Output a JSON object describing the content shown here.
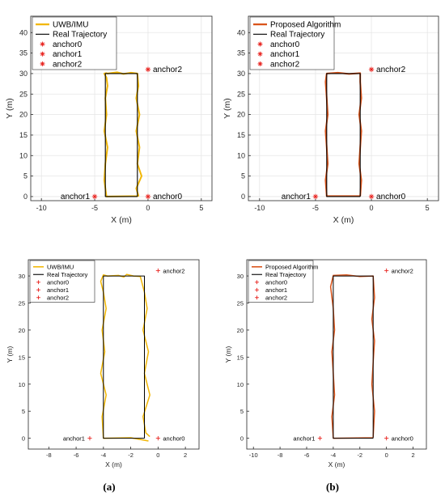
{
  "figure": {
    "panel_labels": [
      "(a)",
      "(b)"
    ]
  },
  "colors": {
    "uwb_imu": "#f2b705",
    "proposed": "#d95319",
    "real": "#000000",
    "anchor": "#e8231f",
    "grid": "#e6e6e6"
  },
  "chart_data": [
    {
      "id": "top-left",
      "type": "line",
      "xlabel": "X (m)",
      "ylabel": "Y (m)",
      "xlim": [
        -11,
        6
      ],
      "ylim": [
        -1,
        44
      ],
      "xticks": [
        -10,
        -5,
        0,
        5
      ],
      "yticks": [
        0,
        5,
        10,
        15,
        20,
        25,
        30,
        35,
        40
      ],
      "grid": true,
      "legend_location": "top-left",
      "style": "large",
      "series": [
        {
          "name": "UWB/IMU",
          "kind": "estimate",
          "color": "#f2b705",
          "x": [
            -1.0,
            -3.9,
            -4.1,
            -4.0,
            -3.8,
            -4.1,
            -3.9,
            -4.0,
            -3.8,
            -3.9,
            -4.1,
            -3.9,
            -3.8,
            -2.9,
            -2.3,
            -1.6,
            -1.0,
            -0.9,
            -1.1,
            -0.8,
            -1.1,
            -0.8,
            -1.0,
            -0.6,
            -1.1,
            -0.9,
            -1.0
          ],
          "y": [
            0.1,
            0.0,
            4.0,
            8.0,
            12.0,
            16.0,
            20.0,
            24.0,
            27.0,
            29.0,
            30.0,
            30.1,
            30.0,
            30.3,
            29.9,
            30.2,
            30.0,
            27.0,
            24.0,
            20.0,
            16.0,
            12.0,
            8.0,
            5.0,
            2.0,
            0.2,
            0.1
          ]
        },
        {
          "name": "Real Trajectory",
          "kind": "real",
          "color": "#000000",
          "x": [
            -1.0,
            -4.0,
            -4.0,
            -1.0,
            -1.0
          ],
          "y": [
            0,
            0,
            30,
            30,
            0
          ]
        },
        {
          "name": "anchor0",
          "kind": "anchor",
          "color": "#e8231f",
          "x": [
            0
          ],
          "y": [
            0
          ]
        },
        {
          "name": "anchor1",
          "kind": "anchor",
          "color": "#e8231f",
          "x": [
            -5
          ],
          "y": [
            0
          ]
        },
        {
          "name": "anchor2",
          "kind": "anchor",
          "color": "#e8231f",
          "x": [
            0
          ],
          "y": [
            31
          ]
        }
      ],
      "annotations": [
        {
          "text": "anchor2",
          "x": 0,
          "y": 31,
          "side": "right"
        },
        {
          "text": "anchor1",
          "x": -5,
          "y": 0,
          "side": "left"
        },
        {
          "text": "anchor0",
          "x": 0,
          "y": 0,
          "side": "right"
        }
      ]
    },
    {
      "id": "top-right",
      "type": "line",
      "xlabel": "X (m)",
      "ylabel": "Y (m)",
      "xlim": [
        -11,
        6
      ],
      "ylim": [
        -1,
        44
      ],
      "xticks": [
        -10,
        -5,
        0,
        5
      ],
      "yticks": [
        0,
        5,
        10,
        15,
        20,
        25,
        30,
        35,
        40
      ],
      "grid": true,
      "legend_location": "top-left",
      "style": "large",
      "series": [
        {
          "name": "Proposed Algorithm",
          "kind": "estimate",
          "color": "#d95319",
          "x": [
            -1.0,
            -4.0,
            -4.1,
            -3.9,
            -4.0,
            -4.1,
            -3.9,
            -4.0,
            -4.1,
            -4.0,
            -3.0,
            -2.0,
            -1.0,
            -1.0,
            -0.9,
            -1.1,
            -0.9,
            -1.0,
            -1.1,
            -0.9,
            -1.0
          ],
          "y": [
            0.1,
            0.1,
            4.0,
            8.0,
            12.0,
            16.0,
            20.0,
            24.0,
            28.0,
            30.0,
            30.2,
            29.9,
            30.1,
            28.0,
            24.0,
            20.0,
            16.0,
            12.0,
            8.0,
            4.0,
            0.1
          ]
        },
        {
          "name": "Real Trajectory",
          "kind": "real",
          "color": "#000000",
          "x": [
            -1.0,
            -4.0,
            -4.0,
            -1.0,
            -1.0
          ],
          "y": [
            0,
            0,
            30,
            30,
            0
          ]
        },
        {
          "name": "anchor0",
          "kind": "anchor",
          "color": "#e8231f",
          "x": [
            0
          ],
          "y": [
            0
          ]
        },
        {
          "name": "anchor1",
          "kind": "anchor",
          "color": "#e8231f",
          "x": [
            -5
          ],
          "y": [
            0
          ]
        },
        {
          "name": "anchor2",
          "kind": "anchor",
          "color": "#e8231f",
          "x": [
            0
          ],
          "y": [
            31
          ]
        }
      ],
      "annotations": [
        {
          "text": "anchor2",
          "x": 0,
          "y": 31,
          "side": "right"
        },
        {
          "text": "anchor1",
          "x": -5,
          "y": 0,
          "side": "left"
        },
        {
          "text": "anchor0",
          "x": 0,
          "y": 0,
          "side": "right"
        }
      ]
    },
    {
      "id": "bottom-left",
      "type": "line",
      "xlabel": "X (m)",
      "ylabel": "Y (m)",
      "xlim": [
        -9.5,
        3
      ],
      "ylim": [
        -2,
        33
      ],
      "xticks": [
        -8,
        -6,
        -4,
        -2,
        0,
        2
      ],
      "yticks": [
        0,
        5,
        10,
        15,
        20,
        25,
        30
      ],
      "grid": false,
      "legend_location": "top-left",
      "style": "small",
      "series": [
        {
          "name": "UWB/IMU",
          "kind": "estimate",
          "color": "#f2b705",
          "x": [
            -0.7,
            -2.0,
            -4.0,
            -4.1,
            -3.8,
            -4.2,
            -3.9,
            -4.1,
            -3.8,
            -4.0,
            -4.2,
            -4.0,
            -3.7,
            -2.9,
            -2.5,
            -2.3,
            -1.8,
            -1.3,
            -1.0,
            -0.8,
            -1.1,
            -0.7,
            -1.0,
            -0.6,
            -1.1,
            -0.9,
            -0.6
          ],
          "y": [
            -0.5,
            0.1,
            0.0,
            4.0,
            8.0,
            12.0,
            16.0,
            20.0,
            24.0,
            27.0,
            29.0,
            30.2,
            30.0,
            30.1,
            29.8,
            30.3,
            30.0,
            29.9,
            27.0,
            24.0,
            20.0,
            16.0,
            12.0,
            8.0,
            4.0,
            1.0,
            0.3
          ]
        },
        {
          "name": "Real Trajectory",
          "kind": "real",
          "color": "#000000",
          "x": [
            -1.0,
            -4.0,
            -4.0,
            -1.0,
            -1.0
          ],
          "y": [
            0,
            0,
            30,
            30,
            0
          ]
        },
        {
          "name": "anchor0",
          "kind": "anchor",
          "color": "#e8231f",
          "x": [
            0
          ],
          "y": [
            0
          ]
        },
        {
          "name": "anchor1",
          "kind": "anchor",
          "color": "#e8231f",
          "x": [
            -5
          ],
          "y": [
            0
          ]
        },
        {
          "name": "anchor2",
          "kind": "anchor",
          "color": "#e8231f",
          "x": [
            0
          ],
          "y": [
            31
          ]
        }
      ],
      "annotations": [
        {
          "text": "anchor2",
          "x": 0,
          "y": 31,
          "side": "right"
        },
        {
          "text": "anchor1",
          "x": -5,
          "y": 0,
          "side": "left"
        },
        {
          "text": "anchor0",
          "x": 0,
          "y": 0,
          "side": "right"
        }
      ]
    },
    {
      "id": "bottom-right",
      "type": "line",
      "xlabel": "X (m)",
      "ylabel": "Y (m)",
      "xlim": [
        -10.5,
        3
      ],
      "ylim": [
        -2,
        33
      ],
      "xticks": [
        -10,
        -8,
        -6,
        -4,
        -2,
        0,
        2
      ],
      "yticks": [
        0,
        5,
        10,
        15,
        20,
        25,
        30
      ],
      "grid": false,
      "legend_location": "top-left",
      "style": "small",
      "series": [
        {
          "name": "Proposed Algorithm",
          "kind": "estimate",
          "color": "#d95319",
          "x": [
            -1.0,
            -4.0,
            -4.1,
            -3.9,
            -4.0,
            -4.1,
            -3.9,
            -4.0,
            -4.2,
            -4.0,
            -3.0,
            -2.0,
            -1.0,
            -0.9,
            -1.1,
            -0.9,
            -1.0,
            -1.1,
            -0.9,
            -1.0
          ],
          "y": [
            0.1,
            0.0,
            4.0,
            8.0,
            12.0,
            16.0,
            20.0,
            24.0,
            28.0,
            30.1,
            30.2,
            29.9,
            30.0,
            26.0,
            22.0,
            18.0,
            14.0,
            10.0,
            5.0,
            0.2
          ]
        },
        {
          "name": "Real Trajectory",
          "kind": "real",
          "color": "#000000",
          "x": [
            -1.0,
            -4.0,
            -4.0,
            -1.0,
            -1.0
          ],
          "y": [
            0,
            0,
            30,
            30,
            0
          ]
        },
        {
          "name": "anchor0",
          "kind": "anchor",
          "color": "#e8231f",
          "x": [
            0
          ],
          "y": [
            0
          ]
        },
        {
          "name": "anchor1",
          "kind": "anchor",
          "color": "#e8231f",
          "x": [
            -5
          ],
          "y": [
            0
          ]
        },
        {
          "name": "anchor2",
          "kind": "anchor",
          "color": "#e8231f",
          "x": [
            0
          ],
          "y": [
            31
          ]
        }
      ],
      "annotations": [
        {
          "text": "anchor2",
          "x": 0,
          "y": 31,
          "side": "right"
        },
        {
          "text": "anchor1",
          "x": -5,
          "y": 0,
          "side": "left"
        },
        {
          "text": "anchor0",
          "x": 0,
          "y": 0,
          "side": "right"
        }
      ]
    }
  ]
}
